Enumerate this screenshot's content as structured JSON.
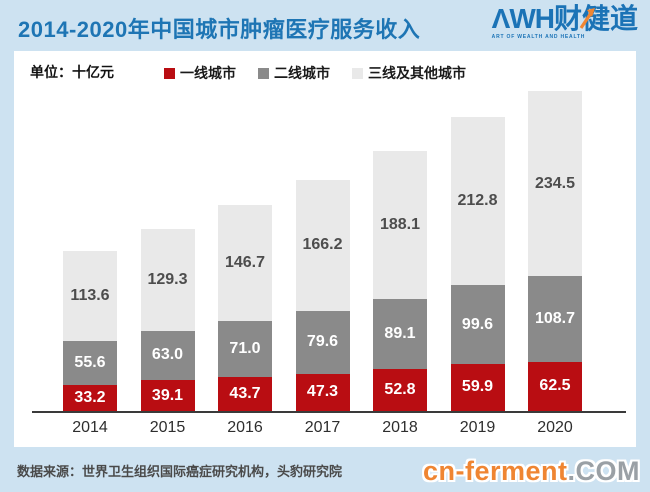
{
  "header": {
    "title": "2014-2020年中国城市肿瘤医疗服务收入",
    "logo": {
      "awh": "ΛWH",
      "brand": "财健道",
      "tagline": "ART OF WEALTH AND HEALTH",
      "blue": "#1b73b6",
      "arrow_color": "#f08632"
    }
  },
  "unit_label": "单位：十亿元",
  "legend": [
    {
      "label": "一线城市",
      "color": "#b90d12"
    },
    {
      "label": "二线城市",
      "color": "#8a8a8a"
    },
    {
      "label": "三线及其他城市",
      "color": "#e9e9e9"
    }
  ],
  "chart_data": {
    "type": "bar",
    "stacked": true,
    "title": "2014-2020年中国城市肿瘤医疗服务收入",
    "unit": "十亿元",
    "categories": [
      "2014",
      "2015",
      "2016",
      "2017",
      "2018",
      "2019",
      "2020"
    ],
    "series": [
      {
        "name": "一线城市",
        "color": "#b90d12",
        "label_color": "#ffffff",
        "values": [
          33.2,
          39.1,
          43.7,
          47.3,
          52.8,
          59.9,
          62.5
        ]
      },
      {
        "name": "二线城市",
        "color": "#8a8a8a",
        "label_color": "#ffffff",
        "values": [
          55.6,
          63.0,
          71.0,
          79.6,
          89.1,
          99.6,
          108.7
        ]
      },
      {
        "name": "三线及其他城市",
        "color": "#e9e9e9",
        "label_color": "#4d4d4d",
        "values": [
          113.6,
          129.3,
          146.7,
          166.2,
          188.1,
          212.8,
          234.5
        ]
      }
    ],
    "totals": [
      202.4,
      231.4,
      261.4,
      293.1,
      330.0,
      372.3,
      405.7
    ],
    "y_axis_visible": false,
    "ylim": [
      0,
      410
    ],
    "legend_position": "top",
    "value_labels": "inside-segments"
  },
  "footer": {
    "source": "数据来源：世界卫生组织国际癌症研究机构，头豹研究院",
    "watermark": {
      "main": "cn-ferment",
      "suffix": ".COM"
    }
  }
}
